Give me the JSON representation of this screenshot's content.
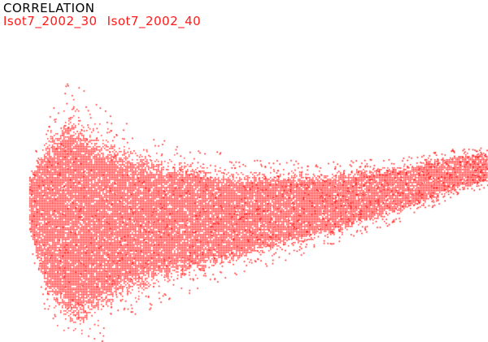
{
  "chart_data": {
    "type": "scatter",
    "title": "CORRELATION",
    "series_names": [
      "Isot7_2002_30",
      "Isot7_2002_40"
    ],
    "xlabel": "",
    "ylabel": "",
    "xlim": [
      0,
      100
    ],
    "ylim": [
      0,
      100
    ],
    "grid": false,
    "axes_visible": false,
    "point_color": "#ff1a1a",
    "background": "#ffffff",
    "point_cloud_envelope": [
      {
        "x": 6,
        "y_min": 31,
        "y_max": 49
      },
      {
        "x": 10,
        "y_min": 10,
        "y_max": 62
      },
      {
        "x": 15,
        "y_min": 3,
        "y_max": 68
      },
      {
        "x": 20,
        "y_min": 7,
        "y_max": 62
      },
      {
        "x": 25,
        "y_min": 12,
        "y_max": 58
      },
      {
        "x": 33,
        "y_min": 17,
        "y_max": 54
      },
      {
        "x": 50,
        "y_min": 24,
        "y_max": 50
      },
      {
        "x": 67,
        "y_min": 31,
        "y_max": 50
      },
      {
        "x": 83,
        "y_min": 38,
        "y_max": 52
      },
      {
        "x": 93,
        "y_min": 44,
        "y_max": 55
      },
      {
        "x": 100,
        "y_min": 47,
        "y_max": 56
      }
    ]
  }
}
